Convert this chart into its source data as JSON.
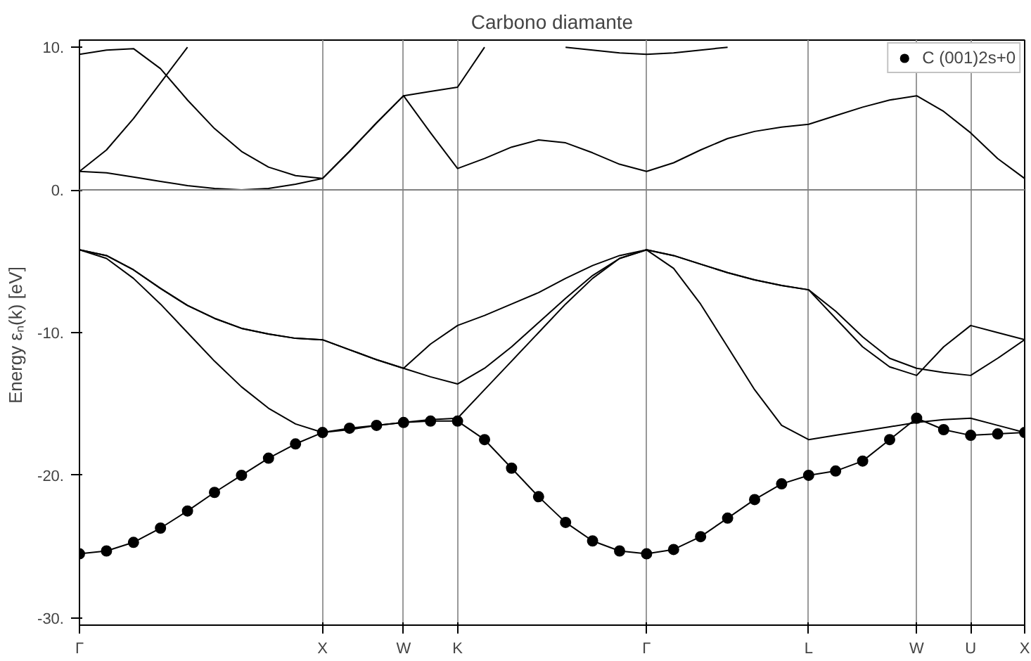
{
  "chart_data": {
    "type": "line",
    "title": "Carbono diamante",
    "ylabel": "Energy εₙ(k)  [eV]",
    "categories": [
      "Γ",
      null,
      null,
      null,
      null,
      null,
      null,
      null,
      null,
      "X",
      null,
      null,
      "W",
      null,
      "K",
      null,
      null,
      null,
      null,
      null,
      null,
      "Γ",
      null,
      null,
      null,
      null,
      null,
      "L",
      null,
      null,
      null,
      "W",
      null,
      "U",
      null,
      "X"
    ],
    "ylim": [
      -30.5,
      10.5
    ],
    "yticks": [
      {
        "value": 10,
        "label": "10."
      },
      {
        "value": 0,
        "label": "0."
      },
      {
        "value": -10,
        "label": "-10."
      },
      {
        "value": -20,
        "label": "-20."
      },
      {
        "value": -30,
        "label": "-30."
      }
    ],
    "grid": "x",
    "legend": "top right",
    "line_style": "solid",
    "ref_lines": [
      {
        "axis": "y",
        "value": 0,
        "color": "#808080"
      }
    ],
    "series": [
      {
        "color": "#000000",
        "values": [
          -25.5,
          -25.3,
          -24.7,
          -23.7,
          -22.5,
          -21.2,
          -20,
          -18.8,
          -17.8,
          -17,
          -16.7,
          -16.5,
          -16.3,
          -16.2,
          -16.2,
          -17.5,
          -19.5,
          -21.5,
          -23.3,
          -24.6,
          -25.3,
          -25.5,
          -25.2,
          -24.3,
          -23,
          -21.7,
          -20.6,
          -20,
          -19.7,
          -19,
          -17.5,
          -16,
          -16.8,
          -17.2,
          -17.1,
          -17
        ]
      },
      {
        "color": "#000000",
        "values": [
          -4.2,
          -4.8,
          -6.2,
          -8,
          -10,
          -12,
          -13.8,
          -15.3,
          -16.4,
          -17,
          -16.8,
          -16.5,
          -16.3,
          -16.1,
          -16,
          -14,
          -12,
          -10,
          -8,
          -6.2,
          -4.8,
          -4.2,
          -5.5,
          -8,
          -11,
          -14,
          -16.5,
          -17.5,
          -17.2,
          -16.9,
          -16.6,
          -16.3,
          -16.1,
          -16,
          -16.5,
          -17
        ]
      },
      {
        "color": "#000000",
        "values": [
          -4.2,
          -4.6,
          -5.6,
          -6.9,
          -8.1,
          -9,
          -9.7,
          -10.1,
          -10.4,
          -10.5,
          -11.2,
          -11.9,
          -12.5,
          -13.1,
          -13.6,
          -12.5,
          -11,
          -9.3,
          -7.6,
          -6,
          -4.8,
          -4.2,
          -4.6,
          -5.2,
          -5.8,
          -6.3,
          -6.7,
          -7,
          -8.5,
          -10.3,
          -11.8,
          -12.5,
          -12.8,
          -13,
          -11.8,
          -10.5
        ]
      },
      {
        "color": "#000000",
        "values": [
          -4.2,
          -4.6,
          -5.6,
          -6.9,
          -8.1,
          -9,
          -9.7,
          -10.1,
          -10.4,
          -10.5,
          -11.2,
          -11.9,
          -12.5,
          -10.8,
          -9.5,
          -8.8,
          -8,
          -7.2,
          -6.2,
          -5.3,
          -4.6,
          -4.2,
          -4.6,
          -5.2,
          -5.8,
          -6.3,
          -6.7,
          -7,
          -9,
          -11,
          -12.4,
          -13,
          -11,
          -9.5,
          -10,
          -10.5
        ]
      },
      {
        "color": "#000000",
        "values": [
          1.3,
          1.2,
          0.9,
          0.6,
          0.3,
          0.1,
          0,
          0.1,
          0.4,
          0.8,
          2.7,
          4.7,
          6.6,
          4,
          1.5,
          2.2,
          3,
          3.5,
          3.3,
          2.6,
          1.8,
          1.3,
          1.9,
          2.8,
          3.6,
          4.1,
          4.4,
          4.6,
          5.2,
          5.8,
          6.3,
          6.6,
          5.5,
          4,
          2.2,
          0.8
        ]
      },
      {
        "color": "#000000",
        "values": [
          1.3,
          2.8,
          5,
          7.5,
          10,
          null,
          null,
          null,
          null,
          null,
          null,
          null,
          null,
          null,
          null,
          null,
          null,
          null,
          null,
          null,
          null,
          null,
          null,
          null,
          null,
          null,
          null,
          null,
          null,
          null,
          null,
          null,
          null,
          null,
          null,
          null
        ]
      },
      {
        "color": "#000000",
        "values": [
          9.5,
          9.8,
          9.9,
          8.5,
          6.3,
          4.3,
          2.7,
          1.6,
          1,
          0.8,
          2.7,
          4.7,
          6.6,
          6.9,
          7.2,
          10,
          null,
          null,
          10,
          9.8,
          9.6,
          9.5,
          9.6,
          9.8,
          10,
          null,
          null,
          null,
          null,
          null,
          null,
          null,
          null,
          null,
          null,
          null
        ]
      },
      {
        "type": "scatter",
        "name": "C (001)2s+0",
        "color": "#000000",
        "marker": "circle",
        "values": [
          -25.5,
          -25.3,
          -24.7,
          -23.7,
          -22.5,
          -21.2,
          -20,
          -18.8,
          -17.8,
          -17,
          -16.7,
          -16.5,
          -16.3,
          -16.2,
          -16.2,
          -17.5,
          -19.5,
          -21.5,
          -23.3,
          -24.6,
          -25.3,
          -25.5,
          -25.2,
          -24.3,
          -23,
          -21.7,
          -20.6,
          -20,
          -19.7,
          -19,
          -17.5,
          -16,
          -16.8,
          -17.2,
          -17.1,
          -17
        ]
      }
    ]
  }
}
